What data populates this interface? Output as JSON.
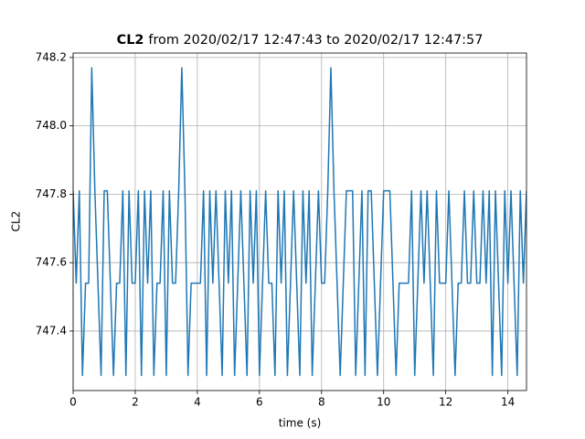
{
  "chart_data": {
    "type": "line",
    "title": {
      "bold": "CL2",
      "rest": "from 2020/02/17 12:47:43 to 2020/02/17 12:47:57"
    },
    "xlabel": "time (s)",
    "ylabel": "CL2",
    "x": [
      0,
      0.1,
      0.2,
      0.3,
      0.4,
      0.5,
      0.6,
      0.7,
      0.8,
      0.9,
      1,
      1.1,
      1.2,
      1.3,
      1.4,
      1.5,
      1.6,
      1.7,
      1.8,
      1.9,
      2,
      2.1,
      2.2,
      2.3,
      2.4,
      2.5,
      2.6,
      2.7,
      2.8,
      2.9,
      3,
      3.1,
      3.2,
      3.3,
      3.4,
      3.5,
      3.6,
      3.7,
      3.8,
      3.9,
      4,
      4.1,
      4.2,
      4.3,
      4.4,
      4.5,
      4.6,
      4.7,
      4.8,
      4.9,
      5,
      5.1,
      5.2,
      5.3,
      5.4,
      5.5,
      5.6,
      5.7,
      5.8,
      5.9,
      6,
      6.1,
      6.2,
      6.3,
      6.4,
      6.5,
      6.6,
      6.7,
      6.8,
      6.9,
      7,
      7.1,
      7.2,
      7.3,
      7.4,
      7.5,
      7.6,
      7.7,
      7.8,
      7.9,
      8,
      8.1,
      8.2,
      8.3,
      8.4,
      8.5,
      8.6,
      8.7,
      8.8,
      8.9,
      9,
      9.1,
      9.2,
      9.3,
      9.4,
      9.5,
      9.6,
      9.7,
      9.8,
      9.9,
      10,
      10.1,
      10.2,
      10.3,
      10.4,
      10.5,
      10.6,
      10.7,
      10.8,
      10.9,
      11,
      11.1,
      11.2,
      11.3,
      11.4,
      11.5,
      11.6,
      11.7,
      11.8,
      11.9,
      12,
      12.1,
      12.2,
      12.3,
      12.4,
      12.5,
      12.6,
      12.7,
      12.8,
      12.9,
      13,
      13.1,
      13.2,
      13.3,
      13.4,
      13.5,
      13.6,
      13.7,
      13.8,
      13.9,
      14,
      14.1,
      14.2,
      14.3,
      14.4,
      14.5,
      14.6
    ],
    "series": [
      {
        "name": "CL2",
        "color": "#1f77b4",
        "values": [
          747.81,
          747.54,
          747.81,
          747.27,
          747.54,
          747.54,
          748.17,
          747.81,
          747.54,
          747.27,
          747.81,
          747.81,
          747.54,
          747.27,
          747.54,
          747.54,
          747.81,
          747.27,
          747.81,
          747.54,
          747.54,
          747.81,
          747.27,
          747.81,
          747.54,
          747.81,
          747.27,
          747.54,
          747.54,
          747.81,
          747.27,
          747.81,
          747.54,
          747.54,
          747.81,
          748.17,
          747.81,
          747.27,
          747.54,
          747.54,
          747.54,
          747.54,
          747.81,
          747.27,
          747.81,
          747.54,
          747.81,
          747.54,
          747.27,
          747.81,
          747.54,
          747.81,
          747.27,
          747.54,
          747.81,
          747.54,
          747.27,
          747.81,
          747.54,
          747.81,
          747.27,
          747.54,
          747.81,
          747.54,
          747.54,
          747.27,
          747.81,
          747.54,
          747.81,
          747.27,
          747.54,
          747.81,
          747.54,
          747.27,
          747.81,
          747.54,
          747.81,
          747.27,
          747.54,
          747.81,
          747.54,
          747.54,
          747.81,
          748.17,
          747.81,
          747.54,
          747.27,
          747.54,
          747.81,
          747.81,
          747.81,
          747.27,
          747.54,
          747.81,
          747.27,
          747.81,
          747.81,
          747.54,
          747.27,
          747.54,
          747.81,
          747.81,
          747.81,
          747.54,
          747.27,
          747.54,
          747.54,
          747.54,
          747.54,
          747.81,
          747.27,
          747.54,
          747.81,
          747.54,
          747.81,
          747.54,
          747.27,
          747.81,
          747.54,
          747.54,
          747.54,
          747.81,
          747.54,
          747.27,
          747.54,
          747.54,
          747.81,
          747.54,
          747.54,
          747.81,
          747.54,
          747.54,
          747.81,
          747.54,
          747.81,
          747.27,
          747.81,
          747.54,
          747.27,
          747.81,
          747.54,
          747.81,
          747.54,
          747.27,
          747.81,
          747.54,
          747.81
        ]
      }
    ],
    "xlim": [
      0,
      14.6
    ],
    "xticks": [
      0,
      2,
      4,
      6,
      8,
      10,
      12,
      14
    ],
    "ylim": [
      747.226,
      748.213
    ],
    "yticks": [
      747.4,
      747.6,
      747.8,
      {
        "value": 748.0,
        "label": "748.0"
      },
      748.2
    ],
    "grid": true
  }
}
